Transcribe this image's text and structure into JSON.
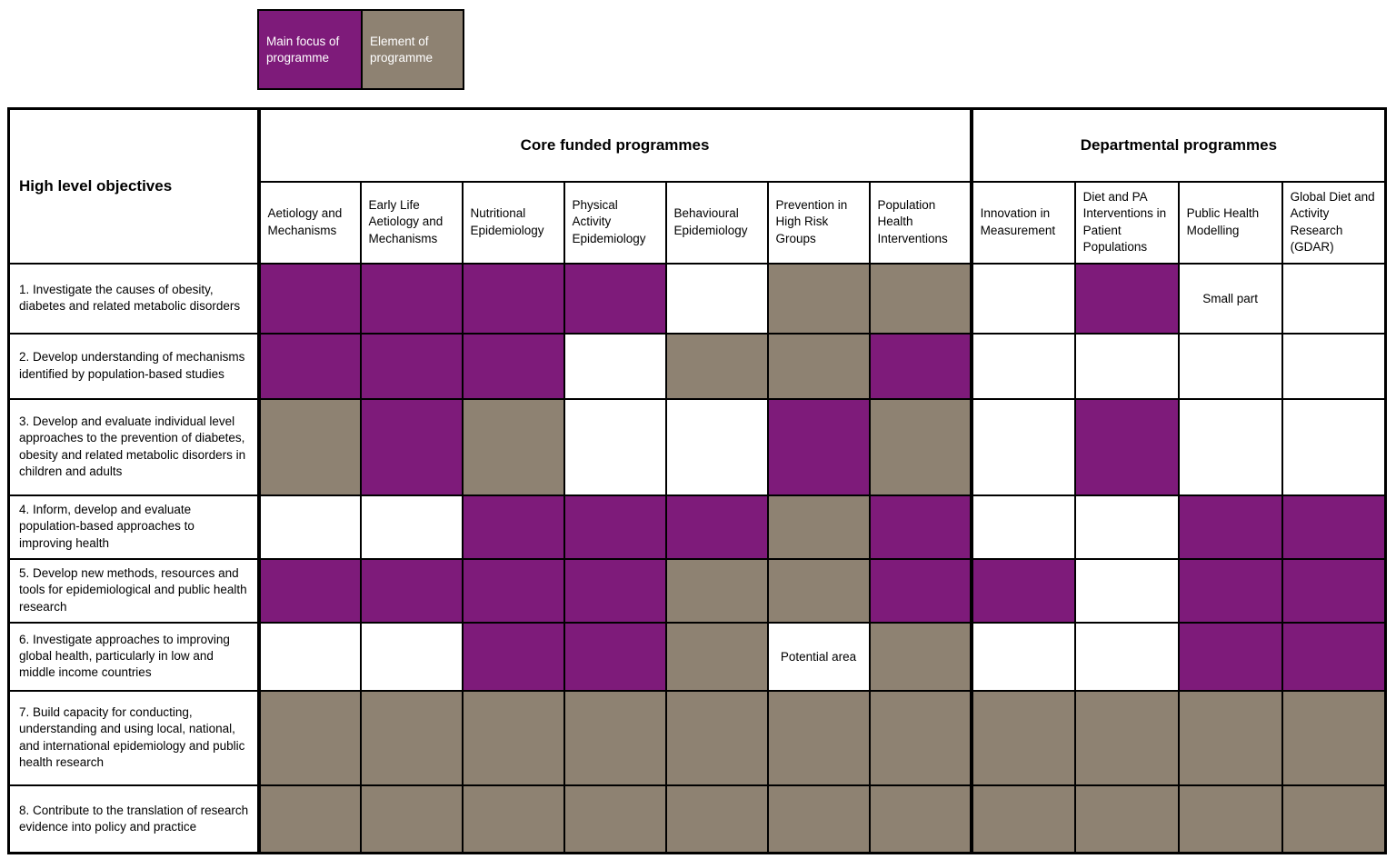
{
  "colors": {
    "main": "#7e1b7a",
    "element": "#8e8272",
    "none": "#ffffff",
    "border": "#000000"
  },
  "legend": {
    "items": [
      {
        "label": "Main focus of programme",
        "type": "main"
      },
      {
        "label": "Element of programme",
        "type": "element"
      }
    ]
  },
  "matrix": {
    "corner_header": "High level objectives",
    "column_groups": [
      {
        "label": "Core funded programmes",
        "span": 7
      },
      {
        "label": "Departmental programmes",
        "span": 4
      }
    ],
    "columns": [
      "Aetiology and Mechanisms",
      "Early Life Aetiology and Mechanisms",
      "Nutritional Epidemiology",
      "Physical Activity Epidemiology",
      "Behavioural Epidemiology",
      "Prevention in High Risk Groups",
      "Population Health Interventions",
      "Innovation in Measurement",
      "Diet and PA Interventions in Patient Populations",
      "Public Health Modelling",
      "Global Diet and Activity Research (GDAR)"
    ],
    "cell_state_legend": "main = Main focus of programme (purple), element = Element of programme (taupe), none = not part of programme (white)",
    "rows": [
      {
        "objective": "1. Investigate the causes of obesity, diabetes and related metabolic disorders",
        "cells": [
          "main",
          "main",
          "main",
          "main",
          "none",
          "element",
          "element",
          "none",
          "main",
          "none",
          "none"
        ],
        "labels": {
          "9": "Small part"
        }
      },
      {
        "objective": "2. Develop understanding of mechanisms identified by population-based studies",
        "cells": [
          "main",
          "main",
          "main",
          "none",
          "element",
          "element",
          "main",
          "none",
          "none",
          "none",
          "none"
        ],
        "labels": {}
      },
      {
        "objective": "3. Develop and evaluate individual level approaches to the prevention of diabetes, obesity and related metabolic disorders in children and adults",
        "cells": [
          "element",
          "main",
          "element",
          "none",
          "none",
          "main",
          "element",
          "none",
          "main",
          "none",
          "none"
        ],
        "labels": {}
      },
      {
        "objective": "4. Inform, develop and evaluate population-based approaches to improving health",
        "cells": [
          "none",
          "none",
          "main",
          "main",
          "main",
          "element",
          "main",
          "none",
          "none",
          "main",
          "main"
        ],
        "labels": {}
      },
      {
        "objective": "5. Develop new methods, resources and tools for epidemiological and public health research",
        "cells": [
          "main",
          "main",
          "main",
          "main",
          "element",
          "element",
          "main",
          "main",
          "none",
          "main",
          "main"
        ],
        "labels": {}
      },
      {
        "objective": "6. Investigate approaches to improving global health, particularly in low and middle income countries",
        "cells": [
          "none",
          "none",
          "main",
          "main",
          "element",
          "none",
          "element",
          "none",
          "none",
          "main",
          "main"
        ],
        "labels": {
          "5": "Potential area"
        }
      },
      {
        "objective": "7. Build capacity for conducting, understanding and using local, national, and international epidemiology and public health research",
        "cells": [
          "element",
          "element",
          "element",
          "element",
          "element",
          "element",
          "element",
          "element",
          "element",
          "element",
          "element"
        ],
        "labels": {}
      },
      {
        "objective": "8. Contribute to the translation of research evidence into policy and practice",
        "cells": [
          "element",
          "element",
          "element",
          "element",
          "element",
          "element",
          "element",
          "element",
          "element",
          "element",
          "element"
        ],
        "labels": {}
      }
    ]
  }
}
